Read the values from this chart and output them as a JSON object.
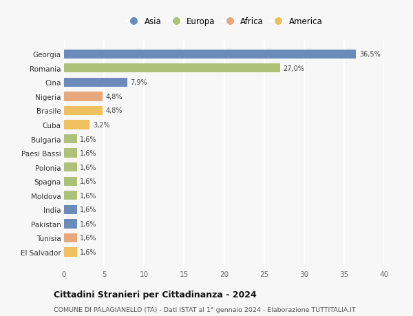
{
  "categories": [
    "Georgia",
    "Romania",
    "Cina",
    "Nigeria",
    "Brasile",
    "Cuba",
    "Bulgaria",
    "Paesi Bassi",
    "Polonia",
    "Spagna",
    "Moldova",
    "India",
    "Pakistan",
    "Tunisia",
    "El Salvador"
  ],
  "values": [
    36.5,
    27.0,
    7.9,
    4.8,
    4.8,
    3.2,
    1.6,
    1.6,
    1.6,
    1.6,
    1.6,
    1.6,
    1.6,
    1.6,
    1.6
  ],
  "labels": [
    "36,5%",
    "27,0%",
    "7,9%",
    "4,8%",
    "4,8%",
    "3,2%",
    "1,6%",
    "1,6%",
    "1,6%",
    "1,6%",
    "1,6%",
    "1,6%",
    "1,6%",
    "1,6%",
    "1,6%"
  ],
  "colors": [
    "#6b8cba",
    "#adc178",
    "#6b8cba",
    "#e8a87c",
    "#f0c060",
    "#f0c060",
    "#adc178",
    "#adc178",
    "#adc178",
    "#adc178",
    "#adc178",
    "#6b8cba",
    "#6b8cba",
    "#e8a87c",
    "#f0c060"
  ],
  "legend_labels": [
    "Asia",
    "Europa",
    "Africa",
    "America"
  ],
  "legend_colors": [
    "#6b8cba",
    "#adc178",
    "#e8a87c",
    "#f0c060"
  ],
  "title": "Cittadini Stranieri per Cittadinanza - 2024",
  "subtitle": "COMUNE DI PALAGIANELLO (TA) - Dati ISTAT al 1° gennaio 2024 - Elaborazione TUTTITALIA.IT",
  "xlim": [
    0,
    40
  ],
  "xticks": [
    0,
    5,
    10,
    15,
    20,
    25,
    30,
    35,
    40
  ],
  "background_color": "#f7f7f7",
  "grid_color": "#ffffff"
}
